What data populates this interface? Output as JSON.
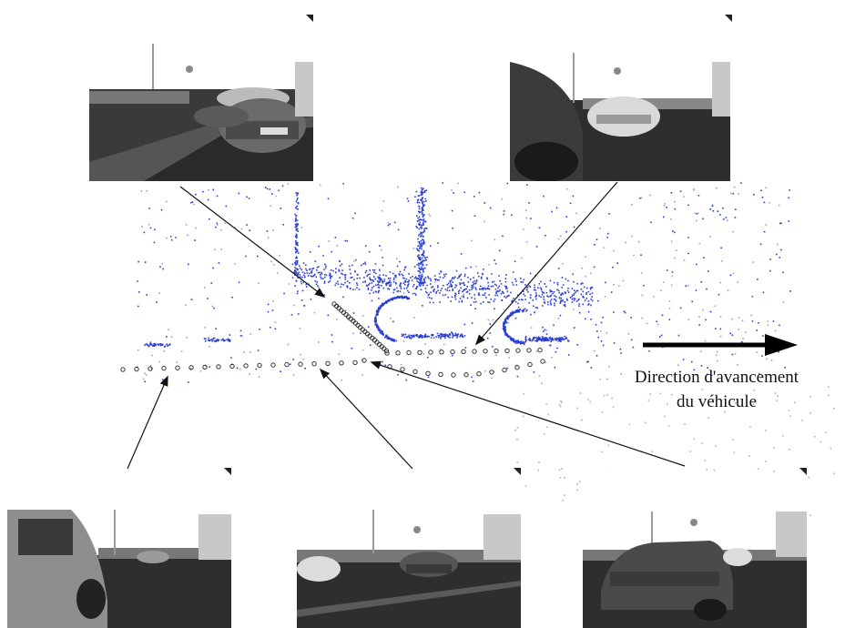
{
  "caption": {
    "line1": "Direction d'avancement",
    "line2": "du véhicule"
  },
  "colors": {
    "point_cloud": "#2b3fd6",
    "trajectory": "#333333",
    "arrow": "#111111",
    "background": "#ffffff"
  },
  "photos": [
    {
      "id": "top-left",
      "content": "parked car front view"
    },
    {
      "id": "top-right",
      "content": "close car side, white car ahead"
    },
    {
      "id": "bottom-left",
      "content": "car side close-up"
    },
    {
      "id": "bottom-center",
      "content": "parking lot with cars"
    },
    {
      "id": "bottom-right",
      "content": "dark car in front"
    }
  ]
}
